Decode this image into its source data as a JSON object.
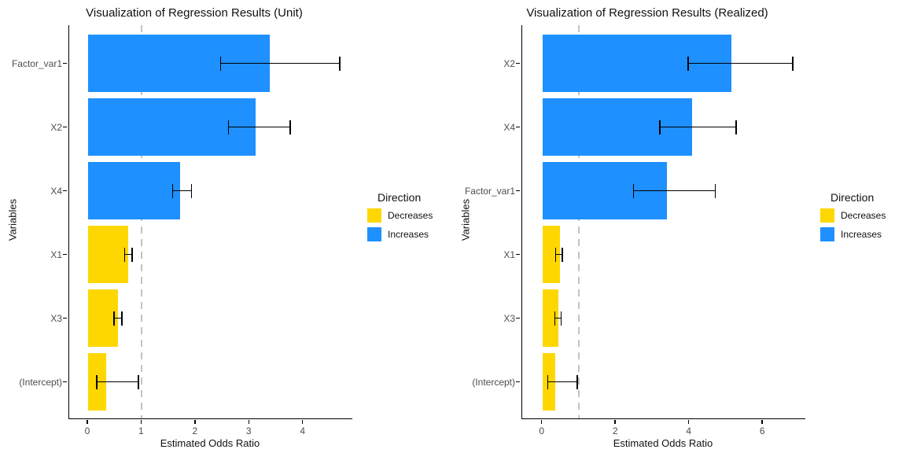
{
  "figure": {
    "background": "#FFFFFF",
    "text_color": "#111111",
    "tick_text_color": "#4D4D4D"
  },
  "chart_data": [
    {
      "type": "bar",
      "orientation": "horizontal",
      "title": "Visualization of Regression Results (Unit)",
      "xlabel": "Estimated Odds Ratio",
      "ylabel": "Variables",
      "categories": [
        "Factor_var1",
        "X2",
        "X4",
        "X1",
        "X3",
        "(Intercept)"
      ],
      "series": [
        {
          "name": "estimate",
          "values": [
            3.37,
            3.12,
            1.71,
            0.74,
            0.55,
            0.34
          ]
        },
        {
          "name": "ci_lower",
          "values": [
            2.45,
            2.6,
            1.56,
            0.67,
            0.47,
            0.15
          ]
        },
        {
          "name": "ci_upper",
          "values": [
            4.69,
            3.77,
            1.93,
            0.83,
            0.64,
            0.95
          ]
        }
      ],
      "direction": [
        "Increases",
        "Increases",
        "Increases",
        "Decreases",
        "Decreases",
        "Decreases"
      ],
      "x_ticks": [
        0,
        1,
        2,
        3,
        4
      ],
      "xlim": [
        -0.35,
        4.91
      ],
      "reference_line": 1,
      "grid": false,
      "colors": {
        "Increases": "#1E90FF",
        "Decreases": "#FFD700",
        "reference": "#C3C3C3",
        "error": "#000000"
      },
      "legend": {
        "title": "Direction",
        "position": "right",
        "entries": [
          {
            "label": "Decreases",
            "color": "#FFD700"
          },
          {
            "label": "Increases",
            "color": "#1E90FF"
          }
        ]
      }
    },
    {
      "type": "bar",
      "orientation": "horizontal",
      "title": "Visualization of Regression Results (Realized)",
      "xlabel": "Estimated Odds Ratio",
      "ylabel": "Variables",
      "categories": [
        "X2",
        "X4",
        "Factor_var1",
        "X1",
        "X3",
        "(Intercept)"
      ],
      "series": [
        {
          "name": "estimate",
          "values": [
            5.15,
            4.08,
            3.38,
            0.47,
            0.43,
            0.34
          ]
        },
        {
          "name": "ci_lower",
          "values": [
            3.95,
            3.18,
            2.46,
            0.34,
            0.32,
            0.13
          ]
        },
        {
          "name": "ci_upper",
          "values": [
            6.82,
            5.28,
            4.72,
            0.56,
            0.53,
            0.96
          ]
        }
      ],
      "direction": [
        "Increases",
        "Increases",
        "Increases",
        "Decreases",
        "Decreases",
        "Decreases"
      ],
      "x_ticks": [
        0,
        2,
        4,
        6
      ],
      "xlim": [
        -0.55,
        7.15
      ],
      "reference_line": 1,
      "grid": false,
      "colors": {
        "Increases": "#1E90FF",
        "Decreases": "#FFD700",
        "reference": "#C3C3C3",
        "error": "#000000"
      },
      "legend": {
        "title": "Direction",
        "position": "right",
        "entries": [
          {
            "label": "Decreases",
            "color": "#FFD700"
          },
          {
            "label": "Increases",
            "color": "#1E90FF"
          }
        ]
      }
    }
  ]
}
